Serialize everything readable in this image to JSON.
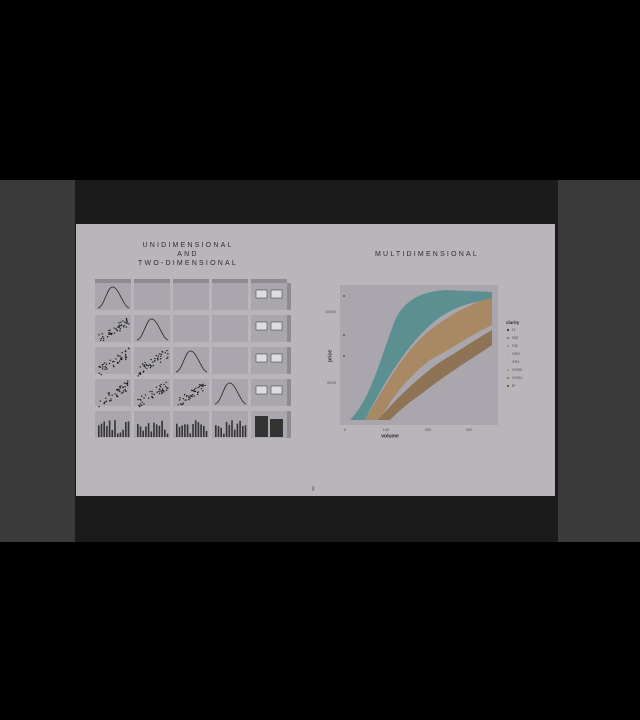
{
  "slide": {
    "left_title": [
      "UNIDIMENSIONAL",
      "AND",
      "TWO-DIMENSIONAL"
    ],
    "right_title": "MULTIDIMENSIONAL",
    "page_number": "3",
    "plot": {
      "y_label": "price",
      "x_label": "volume",
      "y_ticks": [
        "10000",
        "5000"
      ],
      "x_ticks": [
        "0",
        "100",
        "200",
        "300"
      ],
      "legend_title": "clarity",
      "legend": [
        "I1",
        "SI2",
        "SI1",
        "VS2",
        "VS1",
        "VVS2",
        "VVS1",
        "IF"
      ]
    }
  }
}
